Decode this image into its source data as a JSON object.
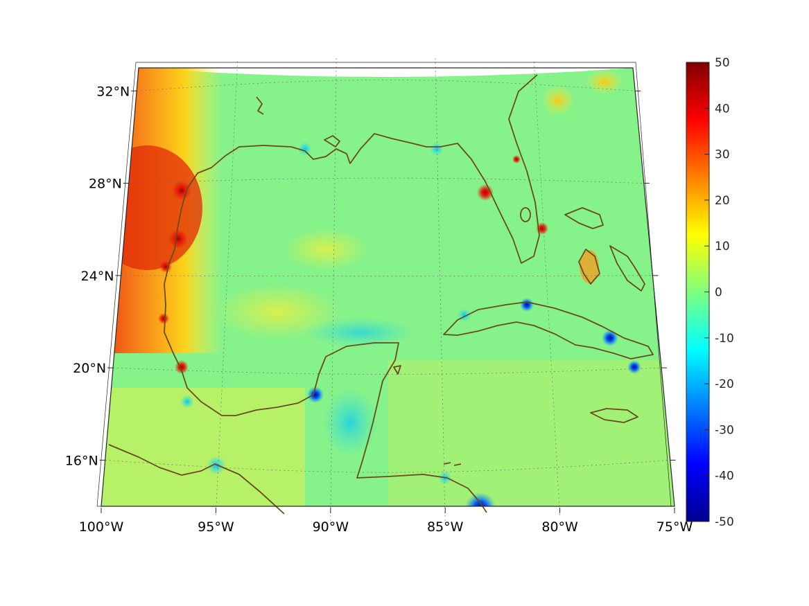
{
  "map": {
    "projection": "conic",
    "lon_range": [
      -100,
      -75
    ],
    "lat_range": [
      14,
      33
    ],
    "lon_ticks": [
      {
        "value": -100,
        "label": "100°W"
      },
      {
        "value": -95,
        "label": "95°W"
      },
      {
        "value": -90,
        "label": "90°W"
      },
      {
        "value": -85,
        "label": "85°W"
      },
      {
        "value": -80,
        "label": "80°W"
      },
      {
        "value": -75,
        "label": "75°W"
      }
    ],
    "lat_ticks": [
      {
        "value": 16,
        "label": "16°N"
      },
      {
        "value": 20,
        "label": "20°N"
      },
      {
        "value": 24,
        "label": "24°N"
      },
      {
        "value": 28,
        "label": "28°N"
      },
      {
        "value": 32,
        "label": "32°N"
      }
    ],
    "gridlines": "dotted",
    "coastline_color": "#6b4a1a",
    "colormap": "jet"
  },
  "colorbar": {
    "min": -50,
    "max": 50,
    "ticks": [
      {
        "value": 50,
        "label": "50"
      },
      {
        "value": 40,
        "label": "40"
      },
      {
        "value": 30,
        "label": "30"
      },
      {
        "value": 20,
        "label": "20"
      },
      {
        "value": 10,
        "label": "10"
      },
      {
        "value": 0,
        "label": "0"
      },
      {
        "value": -10,
        "label": "-10"
      },
      {
        "value": -20,
        "label": "-20"
      },
      {
        "value": -30,
        "label": "-30"
      },
      {
        "value": -40,
        "label": "-40"
      },
      {
        "value": -50,
        "label": "-50"
      }
    ],
    "placement": "right"
  }
}
